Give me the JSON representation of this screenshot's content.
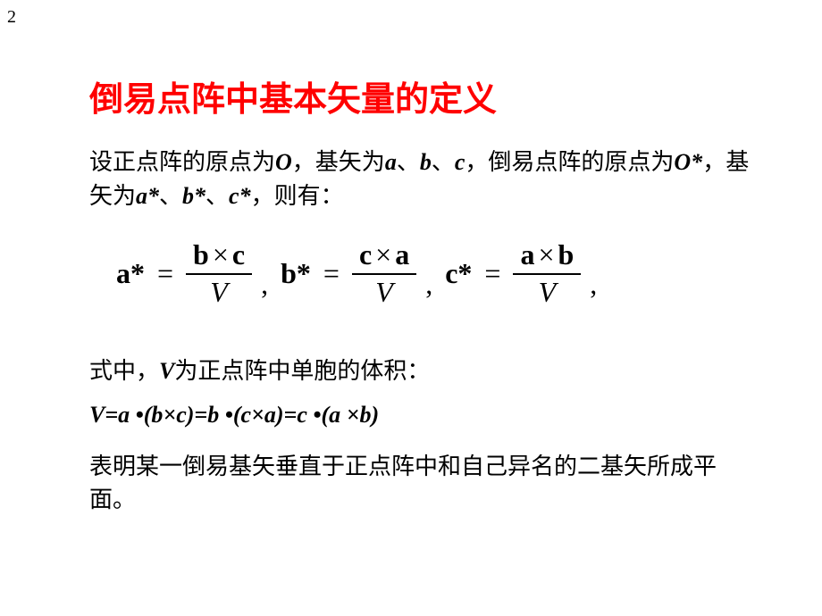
{
  "page_number": "2",
  "title": "倒易点阵中基本矢量的定义",
  "intro": {
    "t1": "设正点阵的原点为",
    "O": "O",
    "t2": "，基矢为",
    "a": "a",
    "sep1": "、",
    "b": "b",
    "sep2": "、",
    "c": "c",
    "t3": "，倒易点阵的原点为",
    "Ostar": "O*",
    "t4": "，基矢为",
    "astar": "a*",
    "sep3": "、",
    "bstar": "b*",
    "sep4": "、",
    "cstar": "c*",
    "t5": "，则有："
  },
  "formula": {
    "a_lhs": "a*",
    "a_num_l": "b",
    "a_num_r": "c",
    "b_lhs": "b*",
    "b_num_l": "c",
    "b_num_r": "a",
    "c_lhs": "c*",
    "c_num_l": "a",
    "c_num_r": "b",
    "den": "V",
    "eq": "=",
    "times": "×",
    "comma": ","
  },
  "vol": {
    "t1": "式中，",
    "V": "V",
    "t2": "为正点阵中单胞的体积：",
    "expr": "V=a •(b×c)=b •(c×a)=c •(a ×b)"
  },
  "conclusion": "表明某一倒易基矢垂直于正点阵中和自己异名的二基矢所成平面。"
}
